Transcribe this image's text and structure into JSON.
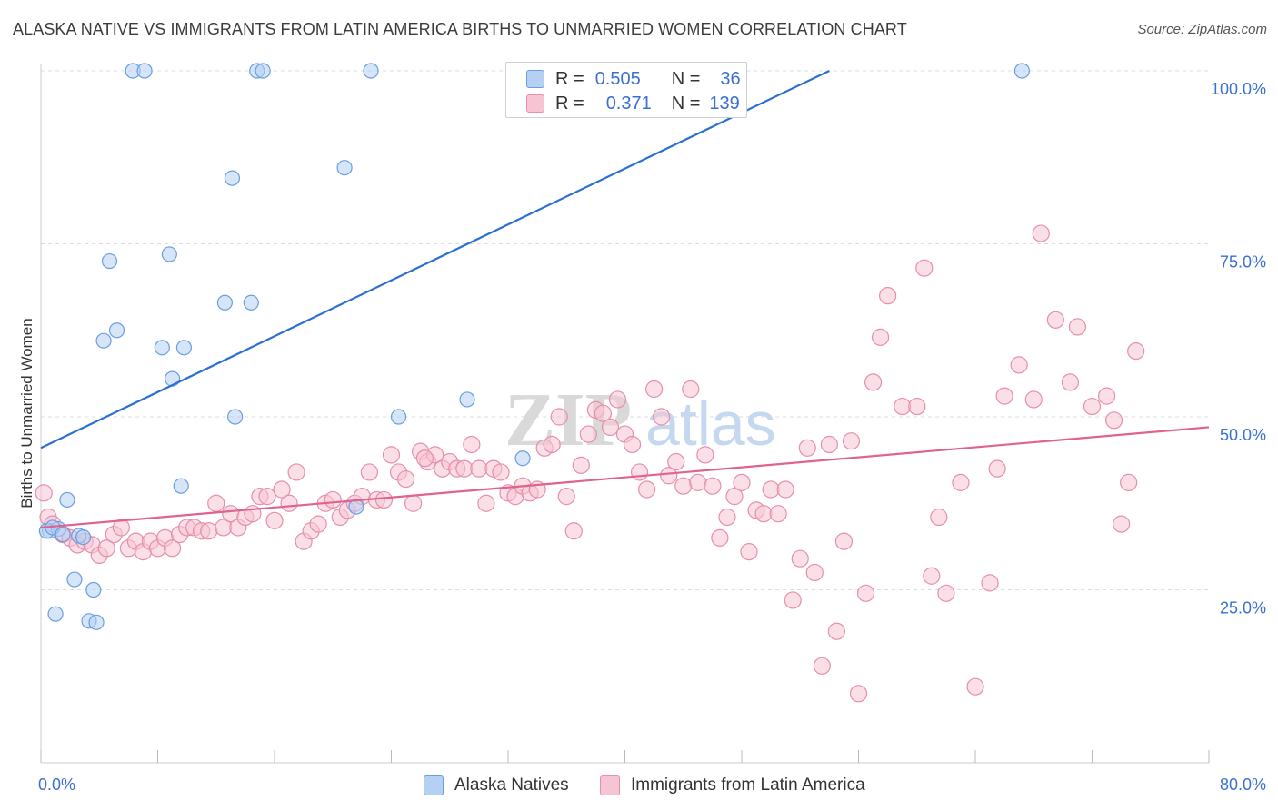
{
  "title": "ALASKA NATIVE VS IMMIGRANTS FROM LATIN AMERICA BIRTHS TO UNMARRIED WOMEN CORRELATION CHART",
  "source": "Source: ZipAtlas.com",
  "watermark": {
    "zip": "ZIP",
    "atlas": "atlas"
  },
  "legend": {
    "rows": [
      {
        "r_label": "R =",
        "r_value": "0.505",
        "n_label": "N =",
        "n_value": "36"
      },
      {
        "r_label": "R =",
        "r_value": "0.371",
        "n_label": "N =",
        "n_value": "139"
      }
    ]
  },
  "colors": {
    "blue_fill": "#b4d0f2",
    "blue_stroke": "#6a9ee0",
    "blue_line": "#2c6fd1",
    "pink_fill": "#f7c4d4",
    "pink_stroke": "#e58fab",
    "pink_line": "#e0628e",
    "axis_text": "#3b6fd0",
    "grid": "#dcdcdc"
  },
  "chart_data": {
    "type": "scatter",
    "title": "ALASKA NATIVE VS IMMIGRANTS FROM LATIN AMERICA BIRTHS TO UNMARRIED WOMEN CORRELATION CHART",
    "xlabel": "",
    "ylabel": "Births to Unmarried Women",
    "xlim": [
      0,
      80
    ],
    "ylim": [
      0,
      105
    ],
    "x_tick_labels": [
      "0.0%",
      "80.0%"
    ],
    "y_ticks": [
      25,
      50,
      75,
      100
    ],
    "y_tick_labels": [
      "25.0%",
      "50.0%",
      "75.0%",
      "100.0%"
    ],
    "legend_position": "bottom-center",
    "series": [
      {
        "name": "Alaska Natives",
        "r": 0.505,
        "n": 36,
        "trend": {
          "x": [
            0,
            54
          ],
          "y": [
            45.5,
            100.0
          ]
        },
        "points": [
          [
            0.6,
            33.5
          ],
          [
            0.4,
            33.5
          ],
          [
            1.2,
            33.8
          ],
          [
            1.8,
            38.0
          ],
          [
            1.0,
            21.5
          ],
          [
            2.3,
            26.5
          ],
          [
            2.6,
            32.8
          ],
          [
            2.9,
            32.6
          ],
          [
            3.3,
            20.5
          ],
          [
            3.6,
            25.0
          ],
          [
            3.8,
            20.3
          ],
          [
            4.3,
            61.0
          ],
          [
            4.7,
            72.5
          ],
          [
            5.2,
            62.5
          ],
          [
            6.3,
            100.0
          ],
          [
            7.1,
            100.0
          ],
          [
            8.3,
            60.0
          ],
          [
            8.8,
            73.5
          ],
          [
            9.0,
            55.5
          ],
          [
            9.6,
            40.0
          ],
          [
            9.8,
            60.0
          ],
          [
            12.6,
            66.5
          ],
          [
            13.1,
            84.5
          ],
          [
            13.3,
            50.0
          ],
          [
            14.4,
            66.5
          ],
          [
            14.8,
            100.0
          ],
          [
            15.2,
            100.0
          ],
          [
            20.8,
            86.0
          ],
          [
            21.6,
            37.0
          ],
          [
            22.6,
            100.0
          ],
          [
            24.5,
            50.0
          ],
          [
            29.2,
            52.5
          ],
          [
            33.0,
            44.0
          ],
          [
            67.2,
            100.0
          ],
          [
            0.8,
            34.0
          ],
          [
            1.5,
            33.0
          ]
        ]
      },
      {
        "name": "Immigrants from Latin America",
        "r": 0.371,
        "n": 139,
        "trend": {
          "x": [
            0,
            80
          ],
          "y": [
            34.0,
            48.5
          ]
        },
        "points": [
          [
            0.2,
            39.0
          ],
          [
            0.5,
            35.5
          ],
          [
            0.8,
            34.5
          ],
          [
            1.5,
            33.0
          ],
          [
            2.0,
            32.5
          ],
          [
            2.5,
            31.5
          ],
          [
            3.0,
            32.0
          ],
          [
            3.5,
            31.5
          ],
          [
            4.0,
            30.0
          ],
          [
            4.5,
            31.0
          ],
          [
            5.0,
            33.0
          ],
          [
            5.5,
            34.0
          ],
          [
            6.0,
            31.0
          ],
          [
            6.5,
            32.0
          ],
          [
            7.0,
            30.5
          ],
          [
            7.5,
            32.0
          ],
          [
            8.0,
            31.0
          ],
          [
            8.5,
            32.5
          ],
          [
            9.0,
            31.0
          ],
          [
            9.5,
            33.0
          ],
          [
            10.0,
            34.0
          ],
          [
            10.5,
            34.0
          ],
          [
            11.0,
            33.5
          ],
          [
            11.5,
            33.5
          ],
          [
            12.0,
            37.5
          ],
          [
            12.5,
            34.0
          ],
          [
            13.0,
            36.0
          ],
          [
            13.5,
            34.0
          ],
          [
            14.0,
            35.5
          ],
          [
            14.5,
            36.0
          ],
          [
            15.0,
            38.5
          ],
          [
            15.5,
            38.5
          ],
          [
            16.0,
            35.0
          ],
          [
            16.5,
            39.5
          ],
          [
            17.0,
            37.5
          ],
          [
            17.5,
            42.0
          ],
          [
            18.0,
            32.0
          ],
          [
            18.5,
            33.5
          ],
          [
            19.0,
            34.5
          ],
          [
            19.5,
            37.5
          ],
          [
            20.0,
            38.0
          ],
          [
            20.5,
            35.5
          ],
          [
            21.0,
            36.5
          ],
          [
            21.5,
            37.5
          ],
          [
            22.0,
            38.5
          ],
          [
            22.5,
            42.0
          ],
          [
            23.0,
            38.0
          ],
          [
            23.5,
            38.0
          ],
          [
            24.0,
            44.5
          ],
          [
            24.5,
            42.0
          ],
          [
            25.0,
            41.0
          ],
          [
            25.5,
            37.5
          ],
          [
            26.0,
            45.0
          ],
          [
            26.5,
            43.5
          ],
          [
            27.0,
            44.5
          ],
          [
            27.5,
            42.5
          ],
          [
            28.0,
            43.5
          ],
          [
            28.5,
            42.5
          ],
          [
            29.0,
            42.5
          ],
          [
            29.5,
            46.0
          ],
          [
            30.0,
            42.5
          ],
          [
            30.5,
            37.5
          ],
          [
            31.0,
            42.5
          ],
          [
            31.5,
            42.0
          ],
          [
            32.0,
            39.0
          ],
          [
            32.5,
            38.5
          ],
          [
            33.0,
            40.0
          ],
          [
            33.5,
            39.0
          ],
          [
            34.0,
            39.5
          ],
          [
            34.5,
            45.5
          ],
          [
            35.0,
            46.0
          ],
          [
            35.5,
            50.0
          ],
          [
            36.0,
            38.5
          ],
          [
            36.5,
            33.5
          ],
          [
            37.0,
            43.0
          ],
          [
            37.5,
            47.5
          ],
          [
            38.0,
            51.0
          ],
          [
            38.5,
            50.5
          ],
          [
            39.0,
            48.5
          ],
          [
            39.5,
            52.5
          ],
          [
            40.0,
            47.5
          ],
          [
            40.5,
            46.0
          ],
          [
            41.0,
            42.0
          ],
          [
            41.5,
            39.5
          ],
          [
            42.0,
            54.0
          ],
          [
            42.5,
            50.0
          ],
          [
            43.0,
            41.5
          ],
          [
            43.5,
            43.5
          ],
          [
            44.0,
            40.0
          ],
          [
            44.5,
            54.0
          ],
          [
            45.0,
            40.5
          ],
          [
            45.5,
            44.5
          ],
          [
            46.0,
            40.0
          ],
          [
            46.5,
            32.5
          ],
          [
            47.0,
            35.5
          ],
          [
            47.5,
            38.5
          ],
          [
            48.0,
            40.5
          ],
          [
            48.5,
            30.5
          ],
          [
            49.0,
            36.5
          ],
          [
            49.5,
            36.0
          ],
          [
            50.0,
            39.5
          ],
          [
            50.5,
            36.0
          ],
          [
            51.0,
            39.5
          ],
          [
            51.5,
            23.5
          ],
          [
            52.0,
            29.5
          ],
          [
            52.5,
            45.5
          ],
          [
            53.0,
            27.5
          ],
          [
            53.5,
            14.0
          ],
          [
            54.0,
            46.0
          ],
          [
            54.5,
            19.0
          ],
          [
            55.0,
            32.0
          ],
          [
            55.5,
            46.5
          ],
          [
            56.0,
            10.0
          ],
          [
            56.5,
            24.5
          ],
          [
            57.0,
            55.0
          ],
          [
            57.5,
            61.5
          ],
          [
            58.0,
            67.5
          ],
          [
            59.0,
            51.5
          ],
          [
            60.0,
            51.5
          ],
          [
            60.5,
            71.5
          ],
          [
            61.0,
            27.0
          ],
          [
            61.5,
            35.5
          ],
          [
            62.0,
            24.5
          ],
          [
            63.0,
            40.5
          ],
          [
            64.0,
            11.0
          ],
          [
            65.0,
            26.0
          ],
          [
            65.5,
            42.5
          ],
          [
            66.0,
            53.0
          ],
          [
            67.0,
            57.5
          ],
          [
            68.0,
            52.5
          ],
          [
            68.5,
            76.5
          ],
          [
            69.5,
            64.0
          ],
          [
            70.5,
            55.0
          ],
          [
            71.0,
            63.0
          ],
          [
            72.0,
            51.5
          ],
          [
            73.0,
            53.0
          ],
          [
            73.5,
            49.5
          ],
          [
            74.0,
            34.5
          ],
          [
            74.5,
            40.5
          ],
          [
            75.0,
            59.5
          ],
          [
            26.3,
            44.0
          ]
        ]
      }
    ]
  }
}
